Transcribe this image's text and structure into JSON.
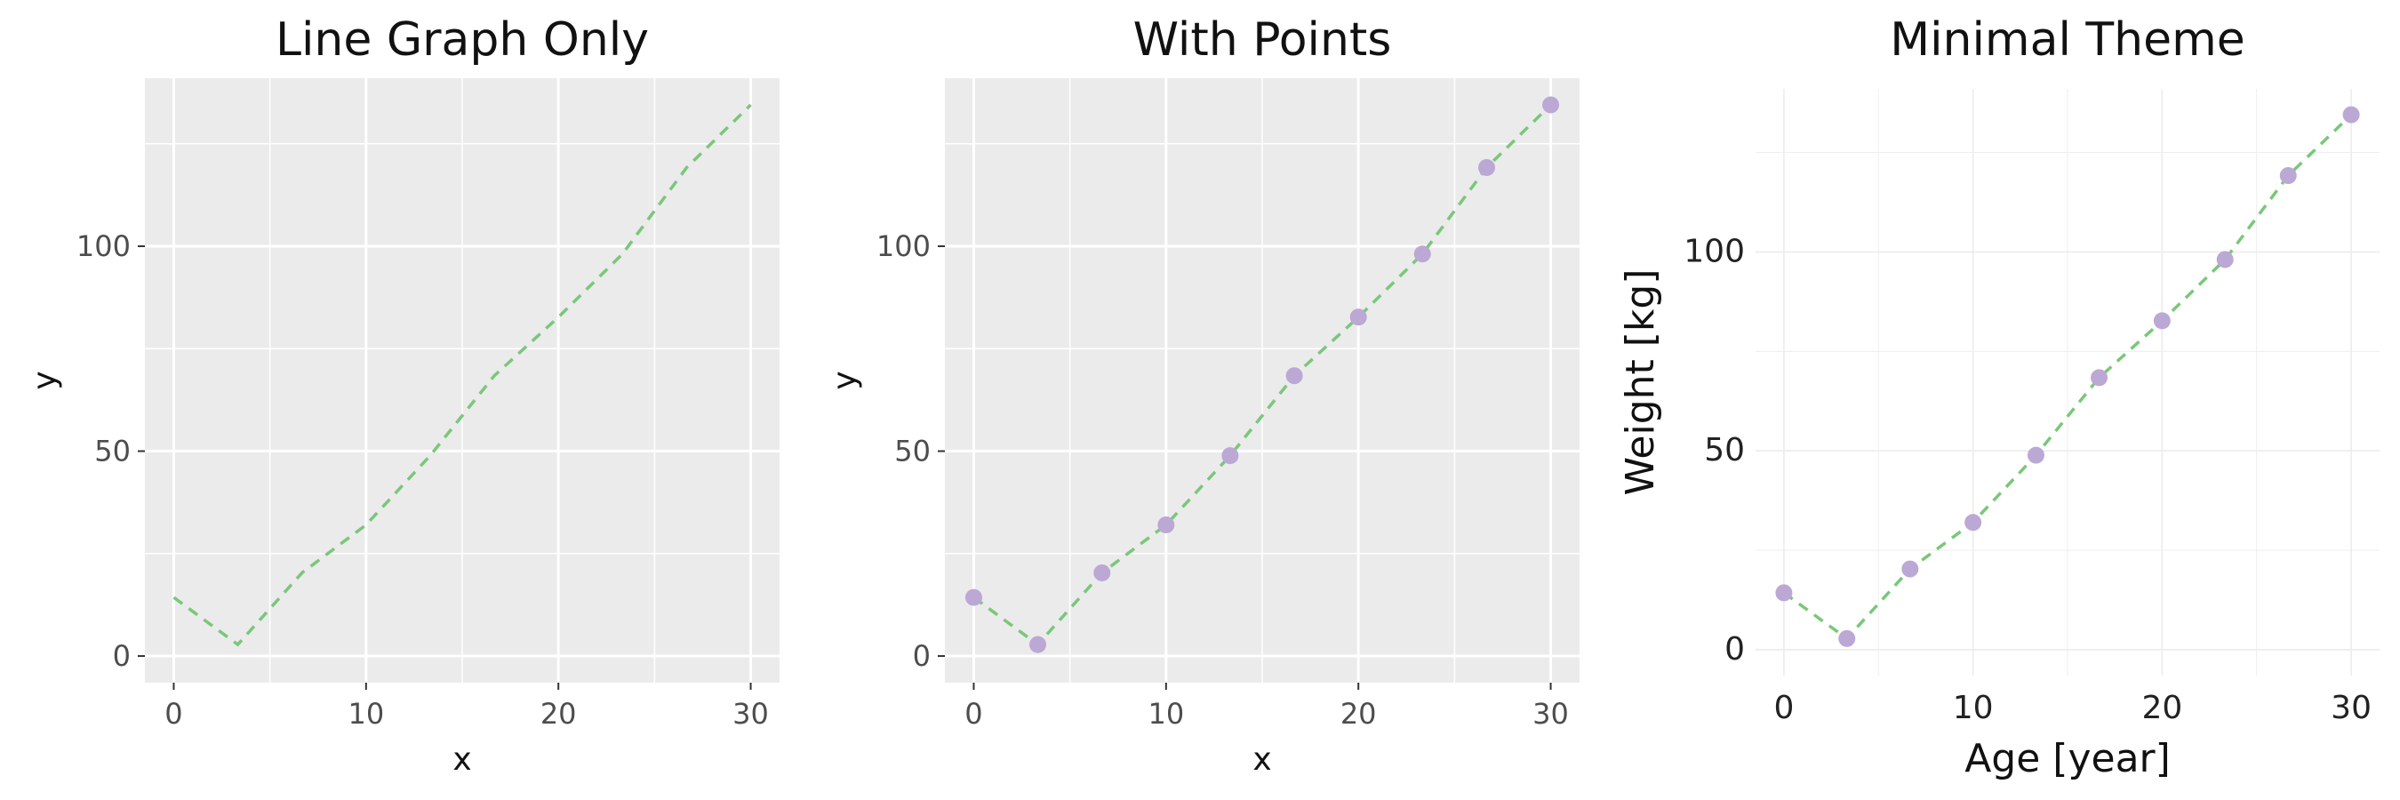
{
  "colors": {
    "line": "#7ac77a",
    "point": "#bba8d4",
    "panel_bg": "#ebebeb",
    "grid": "#ffffff",
    "minimal_grid": "#ececec"
  },
  "chart_data": [
    {
      "type": "line",
      "title": "Line Graph Only",
      "xlabel": "x",
      "ylabel": "y",
      "theme": "gray",
      "line_style": "dashed",
      "show_points": false,
      "grid": true,
      "xlim": [
        -1.5,
        31.5
      ],
      "ylim": [
        -6.5,
        141
      ],
      "xticks": [
        0,
        10,
        20,
        30
      ],
      "yticks": [
        0,
        50,
        100
      ],
      "xtick_labels": [
        "0",
        "10",
        "20",
        "30"
      ],
      "ytick_labels": [
        "0",
        "50",
        "100"
      ],
      "x": [
        0,
        3.33,
        6.67,
        10,
        13.33,
        16.67,
        20,
        23.33,
        26.67,
        30
      ],
      "y": [
        14.3,
        2.8,
        20.3,
        32,
        48.9,
        68.4,
        82.7,
        98.1,
        119.2,
        134.5
      ]
    },
    {
      "type": "line",
      "title": "With Points",
      "xlabel": "x",
      "ylabel": "y",
      "theme": "gray",
      "line_style": "dashed",
      "show_points": true,
      "grid": true,
      "xlim": [
        -1.5,
        31.5
      ],
      "ylim": [
        -6.5,
        141
      ],
      "xticks": [
        0,
        10,
        20,
        30
      ],
      "yticks": [
        0,
        50,
        100
      ],
      "xtick_labels": [
        "0",
        "10",
        "20",
        "30"
      ],
      "ytick_labels": [
        "0",
        "50",
        "100"
      ],
      "x": [
        0,
        3.33,
        6.67,
        10,
        13.33,
        16.67,
        20,
        23.33,
        26.67,
        30
      ],
      "y": [
        14.3,
        2.8,
        20.3,
        32,
        48.9,
        68.4,
        82.7,
        98.1,
        119.2,
        134.5
      ]
    },
    {
      "type": "line",
      "title": "Minimal Theme",
      "xlabel": "Age [year]",
      "ylabel": "Weight [kg]",
      "theme": "minimal",
      "line_style": "dashed",
      "show_points": true,
      "grid": true,
      "xlim": [
        -1.5,
        31.5
      ],
      "ylim": [
        -6.5,
        141
      ],
      "xticks": [
        0,
        10,
        20,
        30
      ],
      "yticks": [
        0,
        50,
        100
      ],
      "xtick_labels": [
        "0",
        "10",
        "20",
        "30"
      ],
      "ytick_labels": [
        "0",
        "50",
        "100"
      ],
      "x": [
        0,
        3.33,
        6.67,
        10,
        13.33,
        16.67,
        20,
        23.33,
        26.67,
        30
      ],
      "y": [
        14.3,
        2.8,
        20.3,
        32,
        48.9,
        68.4,
        82.7,
        98.1,
        119.2,
        134.5
      ]
    }
  ]
}
